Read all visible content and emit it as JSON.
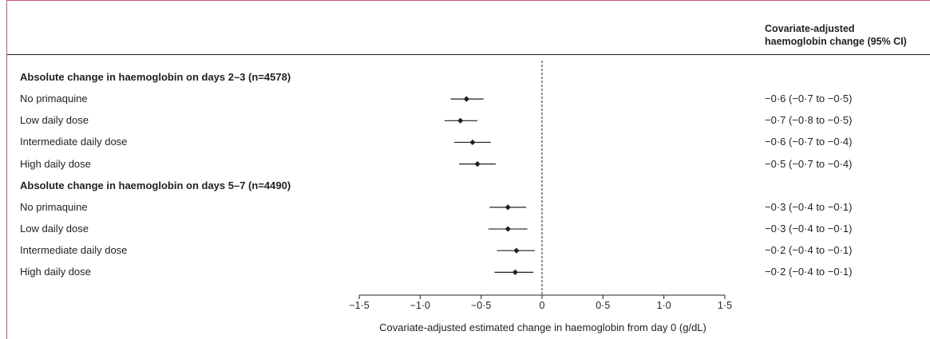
{
  "header": {
    "ci_line1": "Covariate-adjusted",
    "ci_line2": "haemoglobin change (95% CI)"
  },
  "chart_data": {
    "type": "forest",
    "xlabel": "Covariate-adjusted estimated change in haemoglobin from day 0 (g/dL)",
    "xlim": [
      -1.5,
      1.5
    ],
    "ticks": [
      -1.5,
      -1.0,
      -0.5,
      0,
      0.5,
      1.0,
      1.5
    ],
    "tick_labels": [
      "−1·5",
      "−1·0",
      "−0·5",
      "0",
      "0·5",
      "1·0",
      "1·5"
    ],
    "reference_line": 0,
    "rows": [
      {
        "label": "Absolute change in haemoglobin on days 2–3 (n=4578)",
        "group": true
      },
      {
        "label": "No primaquine",
        "estimate": -0.6,
        "lower": -0.7,
        "upper": -0.5,
        "ci_text": "−0·6 (−0·7 to −0·5)"
      },
      {
        "label": "Low daily dose",
        "estimate": -0.7,
        "lower": -0.8,
        "upper": -0.5,
        "ci_text": "−0·7 (−0·8 to −0·5)"
      },
      {
        "label": "Intermediate daily dose",
        "estimate": -0.6,
        "lower": -0.7,
        "upper": -0.4,
        "ci_text": "−0·6 (−0·7 to −0·4)"
      },
      {
        "label": "High daily dose",
        "estimate": -0.5,
        "lower": -0.7,
        "upper": -0.4,
        "ci_text": "−0·5 (−0·7 to −0·4)"
      },
      {
        "label": "Absolute change in haemoglobin on days 5–7 (n=4490)",
        "group": true
      },
      {
        "label": "No primaquine",
        "estimate": -0.3,
        "lower": -0.4,
        "upper": -0.1,
        "ci_text": "−0·3 (−0·4 to −0·1)"
      },
      {
        "label": "Low daily dose",
        "estimate": -0.3,
        "lower": -0.4,
        "upper": -0.1,
        "ci_text": "−0·3 (−0·4 to −0·1)"
      },
      {
        "label": "Intermediate daily dose",
        "estimate": -0.2,
        "lower": -0.4,
        "upper": -0.1,
        "ci_text": "−0·2 (−0·4 to −0·1)"
      },
      {
        "label": "High daily dose",
        "estimate": -0.2,
        "lower": -0.4,
        "upper": -0.1,
        "ci_text": "−0·2 (−0·4 to −0·1)"
      }
    ],
    "plot_estimates": [
      {
        "estimate": null,
        "lower": null,
        "upper": null
      },
      {
        "estimate": -0.62,
        "lower": -0.75,
        "upper": -0.48
      },
      {
        "estimate": -0.67,
        "lower": -0.8,
        "upper": -0.53
      },
      {
        "estimate": -0.57,
        "lower": -0.72,
        "upper": -0.42
      },
      {
        "estimate": -0.53,
        "lower": -0.68,
        "upper": -0.38
      },
      {
        "estimate": null,
        "lower": null,
        "upper": null
      },
      {
        "estimate": -0.28,
        "lower": -0.43,
        "upper": -0.13
      },
      {
        "estimate": -0.28,
        "lower": -0.44,
        "upper": -0.12
      },
      {
        "estimate": -0.21,
        "lower": -0.37,
        "upper": -0.06
      },
      {
        "estimate": -0.22,
        "lower": -0.39,
        "upper": -0.07
      }
    ]
  }
}
